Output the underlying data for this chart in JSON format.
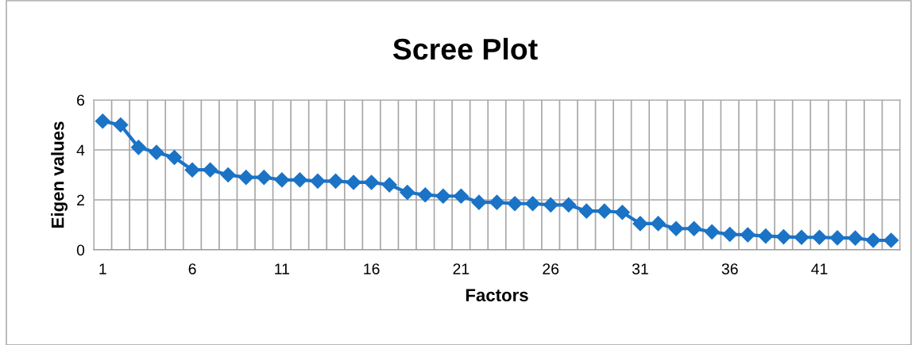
{
  "chart_data": {
    "type": "line",
    "title": "Scree Plot",
    "xlabel": "Factors",
    "ylabel": "Eigen values",
    "categories": [
      "1",
      null,
      null,
      null,
      null,
      "6",
      null,
      null,
      null,
      null,
      "11",
      null,
      null,
      null,
      null,
      "16",
      null,
      null,
      null,
      null,
      "21",
      null,
      null,
      null,
      null,
      "26",
      null,
      null,
      null,
      null,
      "31",
      null,
      null,
      null,
      null,
      "36",
      null,
      null,
      null,
      null,
      "41",
      null,
      null,
      null,
      null
    ],
    "series": [
      {
        "color": "#1b73c6",
        "values": [
          5.15,
          5.0,
          4.1,
          3.9,
          3.7,
          3.2,
          3.2,
          3.0,
          2.9,
          2.9,
          2.8,
          2.8,
          2.75,
          2.75,
          2.7,
          2.7,
          2.6,
          2.3,
          2.2,
          2.15,
          2.15,
          1.9,
          1.9,
          1.85,
          1.85,
          1.8,
          1.8,
          1.55,
          1.55,
          1.5,
          1.05,
          1.05,
          0.85,
          0.85,
          0.72,
          0.62,
          0.6,
          0.55,
          0.52,
          0.5,
          0.5,
          0.48,
          0.47,
          0.38,
          0.38
        ]
      }
    ],
    "ylim": [
      0,
      6
    ],
    "yticks": [
      0,
      2,
      4,
      6
    ],
    "grid": true,
    "legend": false,
    "marker": "diamond",
    "line_style": "solid"
  }
}
